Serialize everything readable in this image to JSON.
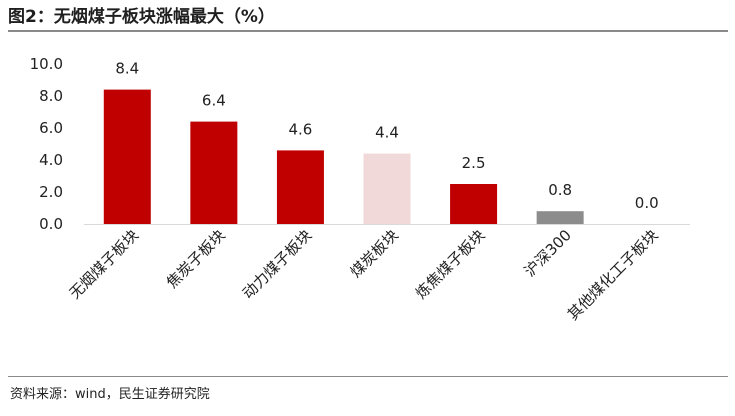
{
  "title": "图2：无烟煤子板块涨幅最大（%）",
  "source": "资料来源：wind，民生证券研究院",
  "chart_data": {
    "type": "bar",
    "categories": [
      "无烟煤子板块",
      "焦炭子板块",
      "动力煤子板块",
      "煤炭板块",
      "炼焦煤子板块",
      "沪深300",
      "其他煤化工子板块"
    ],
    "values": [
      8.4,
      6.4,
      4.6,
      4.4,
      2.5,
      0.8,
      0.0
    ],
    "data_labels": [
      "8.4",
      "6.4",
      "4.6",
      "4.4",
      "2.5",
      "0.8",
      "0.0"
    ],
    "bar_colors": [
      "#c00000",
      "#c00000",
      "#c00000",
      "#f2d9d9",
      "#c00000",
      "#8c8c8c",
      "#c00000"
    ],
    "yticks": [
      "0.0",
      "2.0",
      "4.0",
      "6.0",
      "8.0",
      "10.0"
    ],
    "ytick_values": [
      0,
      2,
      4,
      6,
      8,
      10
    ],
    "ylim": [
      0,
      10
    ],
    "title": "",
    "xlabel": "",
    "ylabel": "",
    "grid": false,
    "legend": "none"
  }
}
